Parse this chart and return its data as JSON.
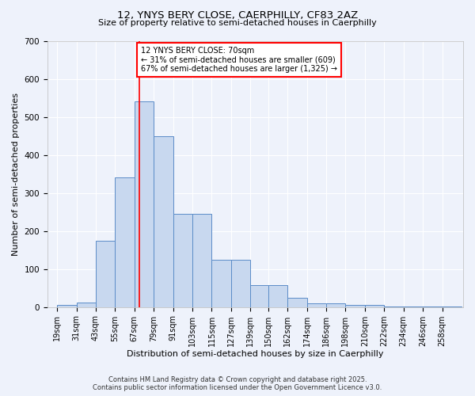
{
  "title_line1": "12, YNYS BERY CLOSE, CAERPHILLY, CF83 2AZ",
  "title_line2": "Size of property relative to semi-detached houses in Caerphilly",
  "xlabel": "Distribution of semi-detached houses by size in Caerphilly",
  "ylabel": "Number of semi-detached properties",
  "bin_labels": [
    "19sqm",
    "31sqm",
    "43sqm",
    "55sqm",
    "67sqm",
    "79sqm",
    "91sqm",
    "103sqm",
    "115sqm",
    "127sqm",
    "139sqm",
    "150sqm",
    "162sqm",
    "174sqm",
    "186sqm",
    "198sqm",
    "210sqm",
    "222sqm",
    "234sqm",
    "246sqm",
    "258sqm"
  ],
  "bar_values": [
    5,
    12,
    175,
    340,
    540,
    450,
    245,
    245,
    125,
    125,
    58,
    58,
    25,
    10,
    10,
    5,
    5,
    2,
    1,
    1,
    1
  ],
  "bar_facecolor": "#c8d8ef",
  "bar_edgecolor": "#5b8cc8",
  "vline_x": 70,
  "vline_color": "red",
  "annotation_title": "12 YNYS BERY CLOSE: 70sqm",
  "annotation_line2": "← 31% of semi-detached houses are smaller (609)",
  "annotation_line3": "67% of semi-detached houses are larger (1,325) →",
  "annotation_box_facecolor": "white",
  "annotation_box_edgecolor": "red",
  "footer_line1": "Contains HM Land Registry data © Crown copyright and database right 2025.",
  "footer_line2": "Contains public sector information licensed under the Open Government Licence v3.0.",
  "ylim": [
    0,
    700
  ],
  "bg_color": "#eef2fb",
  "grid_color": "white",
  "title_fontsize": 9.5,
  "subtitle_fontsize": 8,
  "tick_fontsize": 7,
  "ylabel_fontsize": 8,
  "xlabel_fontsize": 8
}
